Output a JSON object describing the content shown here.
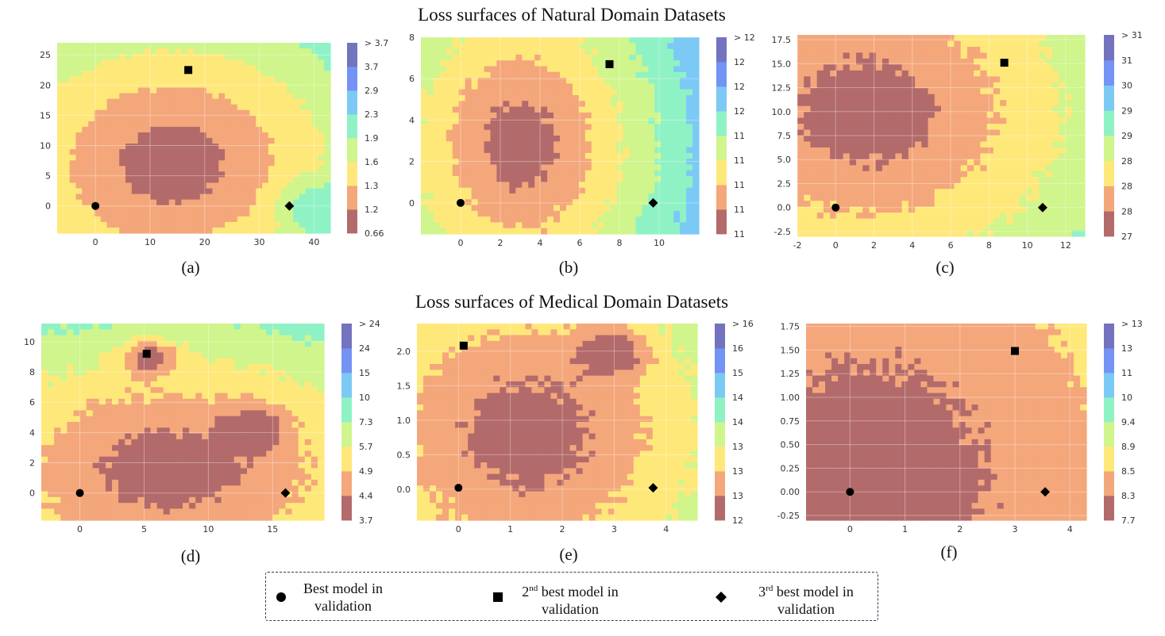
{
  "section_titles": {
    "natural": "Loss surfaces of Natural Domain Datasets",
    "medical": "Loss surfaces of Medical Domain Datasets"
  },
  "legend": {
    "best": {
      "line1": "Best model in",
      "line2": "validation"
    },
    "second": {
      "prefix": "2",
      "sup": "nd",
      "line1": " best model in",
      "line2": "validation"
    },
    "third": {
      "prefix": "3",
      "sup": "rd",
      "line1": " best model in",
      "line2": "validation"
    }
  },
  "level_colors": [
    "#b36a6a",
    "#f4a77b",
    "#ffe87a",
    "#cff58c",
    "#8ff2c5",
    "#7cc9f5",
    "#7393f5",
    "#7373c0"
  ],
  "chart_data": [
    {
      "type": "contour",
      "label": "(a)",
      "xlim": [
        -7,
        43
      ],
      "ylim": [
        -4.5,
        27
      ],
      "xticks": [
        0,
        10,
        20,
        30,
        40
      ],
      "yticks": [
        0,
        5,
        10,
        15,
        20,
        25
      ],
      "colorbar_labels": [
        "0.66",
        "1.2",
        "1.3",
        "1.6",
        "1.9",
        "2.3",
        "2.9",
        "3.7",
        "> 3.7"
      ],
      "markers": {
        "best": [
          0,
          0
        ],
        "second": [
          17,
          22.5
        ],
        "third": [
          35.5,
          0
        ]
      },
      "field": {
        "kind": "bowl",
        "cx": 14,
        "cy": 7,
        "rx": 30,
        "ry": 20,
        "rot": 0,
        "bumps": [
          [
            40,
            0,
            0.6,
            6
          ]
        ],
        "noise": 0.05
      }
    },
    {
      "type": "contour",
      "label": "(b)",
      "xlim": [
        -2,
        12
      ],
      "ylim": [
        -1.5,
        8
      ],
      "xticks": [
        0,
        2,
        4,
        6,
        8,
        10
      ],
      "yticks": [
        0,
        2,
        4,
        6,
        8
      ],
      "colorbar_labels": [
        "11",
        "11",
        "11",
        "11",
        "11",
        "12",
        "12",
        "12",
        "> 12"
      ],
      "markers": {
        "best": [
          0,
          0
        ],
        "second": [
          7.5,
          6.7
        ],
        "third": [
          9.7,
          0
        ]
      },
      "field": {
        "kind": "bowl",
        "cx": 3,
        "cy": 2.8,
        "rx": 5.5,
        "ry": 6.5,
        "rot": 0,
        "bumps": [],
        "noise": 0.12
      }
    },
    {
      "type": "contour",
      "label": "(c)",
      "xlim": [
        -2,
        13
      ],
      "ylim": [
        -3,
        18
      ],
      "xticks": [
        -2,
        0,
        2,
        4,
        6,
        8,
        10,
        12
      ],
      "yticks": [
        -2.5,
        0.0,
        2.5,
        5.0,
        7.5,
        10.0,
        12.5,
        15.0,
        17.5
      ],
      "colorbar_labels": [
        "27",
        "28",
        "28",
        "28",
        "29",
        "29",
        "30",
        "31",
        "> 31"
      ],
      "markers": {
        "best": [
          0,
          0
        ],
        "second": [
          8.8,
          15.1
        ],
        "third": [
          10.8,
          0
        ]
      },
      "field": {
        "kind": "bowl",
        "cx": 1.5,
        "cy": 10,
        "rx": 11,
        "ry": 17,
        "rot": 0.3,
        "bumps": [],
        "noise": 0.1
      }
    },
    {
      "type": "contour",
      "label": "(d)",
      "xlim": [
        -3,
        19
      ],
      "ylim": [
        -1.8,
        11.2
      ],
      "xticks": [
        0,
        5,
        10,
        15
      ],
      "yticks": [
        0,
        2,
        4,
        6,
        8,
        10
      ],
      "colorbar_labels": [
        "3.7",
        "4.4",
        "4.9",
        "5.7",
        "7.3",
        "10",
        "15",
        "24",
        "> 24"
      ],
      "markers": {
        "best": [
          0,
          0
        ],
        "second": [
          5.2,
          9.2
        ],
        "third": [
          16,
          0
        ]
      },
      "field": {
        "kind": "bowl",
        "cx": 7,
        "cy": 1.5,
        "rx": 17,
        "ry": 8,
        "rot": -0.2,
        "bumps": [
          [
            5.5,
            9.0,
            -0.9,
            1.6
          ],
          [
            13.5,
            4.3,
            -0.6,
            2.0
          ]
        ],
        "noise": 0.12
      }
    },
    {
      "type": "contour",
      "label": "(e)",
      "xlim": [
        -0.8,
        4.6
      ],
      "ylim": [
        -0.45,
        2.4
      ],
      "xticks": [
        0,
        1,
        2,
        3,
        4
      ],
      "yticks": [
        0.0,
        0.5,
        1.0,
        1.5,
        2.0
      ],
      "colorbar_labels": [
        "12",
        "13",
        "13",
        "13",
        "14",
        "14",
        "15",
        "16",
        "> 16"
      ],
      "markers": {
        "best": [
          0,
          0.02
        ],
        "second": [
          0.1,
          2.08
        ],
        "third": [
          3.75,
          0.02
        ]
      },
      "field": {
        "kind": "bowl",
        "cx": 1.3,
        "cy": 0.8,
        "rx": 3.6,
        "ry": 2.4,
        "rot": 0.5,
        "bumps": [
          [
            3.0,
            2.0,
            -0.7,
            0.5
          ]
        ],
        "noise": 0.14
      }
    },
    {
      "type": "contour",
      "label": "(f)",
      "xlim": [
        -0.8,
        4.3
      ],
      "ylim": [
        -0.3,
        1.78
      ],
      "xticks": [
        0,
        1,
        2,
        3,
        4
      ],
      "yticks": [
        -0.25,
        0.0,
        0.25,
        0.5,
        0.75,
        1.0,
        1.25,
        1.5,
        1.75
      ],
      "colorbar_labels": [
        "7.7",
        "8.3",
        "8.5",
        "8.9",
        "9.4",
        "10",
        "11",
        "13",
        "> 13"
      ],
      "markers": {
        "best": [
          0,
          0
        ],
        "second": [
          3,
          1.49
        ],
        "third": [
          3.55,
          0
        ]
      },
      "field": {
        "kind": "bowl",
        "cx": 0.3,
        "cy": 0.1,
        "rx": 7.0,
        "ry": 4.0,
        "rot": 0.1,
        "bumps": [
          [
            0.2,
            0.0,
            -0.6,
            0.35
          ]
        ],
        "noise": 0.1
      }
    }
  ]
}
